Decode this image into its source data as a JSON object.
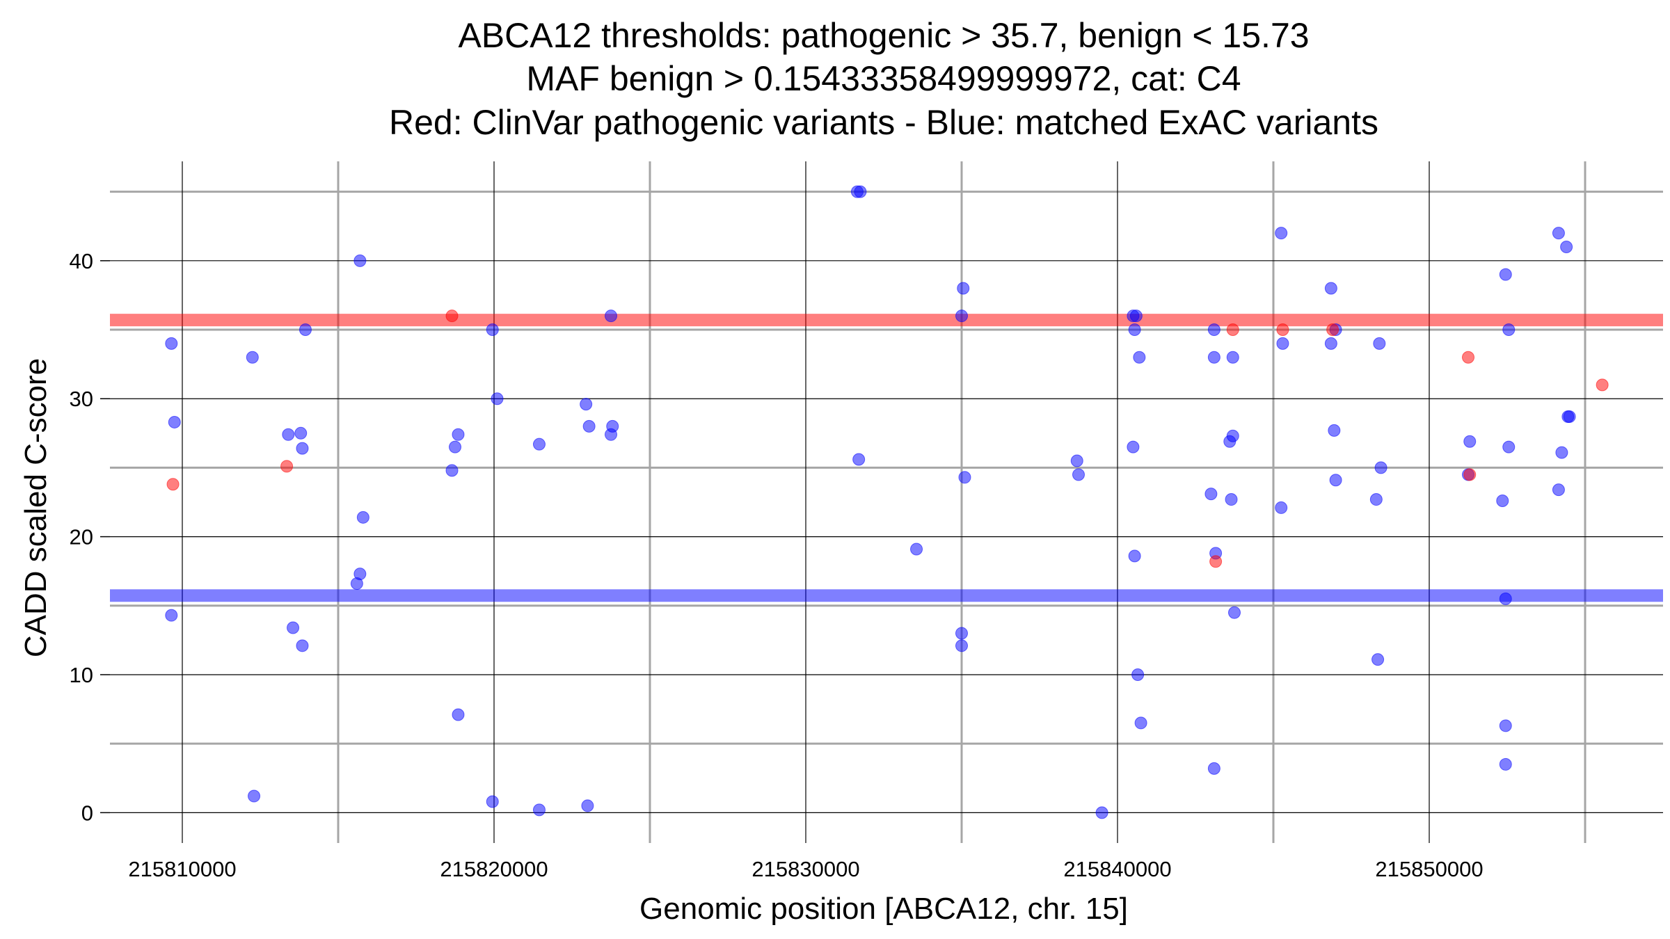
{
  "chart_data": {
    "type": "scatter",
    "title_lines": [
      "ABCA12 thresholds: pathogenic > 35.7, benign < 15.73",
      "MAF benign > 0.15433358499999972, cat: C4",
      "Red: ClinVar pathogenic variants - Blue: matched ExAC variants"
    ],
    "xlabel": "Genomic position [ABCA12, chr. 15]",
    "ylabel": "CADD scaled C-score",
    "xlim": [
      215807500,
      215857500
    ],
    "ylim": [
      -2.2,
      47.2
    ],
    "x_major_ticks": [
      215810000,
      215820000,
      215830000,
      215840000,
      215850000
    ],
    "x_tick_labels": [
      "215810000",
      "215820000",
      "215830000",
      "215840000",
      "215850000"
    ],
    "x_minor_grid": [
      215815000,
      215825000,
      215835000,
      215845000,
      215855000
    ],
    "y_major_ticks": [
      0,
      10,
      20,
      30,
      40
    ],
    "y_tick_labels": [
      "0",
      "10",
      "20",
      "30",
      "40"
    ],
    "y_minor_grid": [
      5,
      15,
      25,
      35,
      45
    ],
    "thresholds": [
      {
        "name": "pathogenic",
        "value": 35.7,
        "color": "#ff0000"
      },
      {
        "name": "benign",
        "value": 15.73,
        "color": "#0000ff"
      }
    ],
    "series": [
      {
        "name": "ClinVar pathogenic variants",
        "color": "#ff0000",
        "points": [
          [
            215809700,
            23.8
          ],
          [
            215813350,
            25.1
          ],
          [
            215818650,
            36.0
          ],
          [
            215843150,
            18.2
          ],
          [
            215843700,
            35.0
          ],
          [
            215845300,
            35.0
          ],
          [
            215846900,
            35.0
          ],
          [
            215851250,
            33.0
          ],
          [
            215851300,
            24.5
          ],
          [
            215855550,
            31.0
          ]
        ]
      },
      {
        "name": "matched ExAC variants",
        "color": "#0000ff",
        "points": [
          [
            215809650,
            34.0
          ],
          [
            215809750,
            28.3
          ],
          [
            215809650,
            14.3
          ],
          [
            215812250,
            33.0
          ],
          [
            215812300,
            1.2
          ],
          [
            215813400,
            27.4
          ],
          [
            215813550,
            13.4
          ],
          [
            215813800,
            27.5
          ],
          [
            215813850,
            26.4
          ],
          [
            215813850,
            12.1
          ],
          [
            215813950,
            35.0
          ],
          [
            215815700,
            40.0
          ],
          [
            215815800,
            21.4
          ],
          [
            215815700,
            17.3
          ],
          [
            215815600,
            16.6
          ],
          [
            215818650,
            24.8
          ],
          [
            215818750,
            26.5
          ],
          [
            215818850,
            27.4
          ],
          [
            215818850,
            7.1
          ],
          [
            215819950,
            35.0
          ],
          [
            215820100,
            30.0
          ],
          [
            215819950,
            0.8
          ],
          [
            215821450,
            26.7
          ],
          [
            215821450,
            0.2
          ],
          [
            215822950,
            29.6
          ],
          [
            215823050,
            28.0
          ],
          [
            215823000,
            0.5
          ],
          [
            215823750,
            36.0
          ],
          [
            215823800,
            28.0
          ],
          [
            215823750,
            27.4
          ],
          [
            215831650,
            45.0
          ],
          [
            215831750,
            45.0
          ],
          [
            215831700,
            25.6
          ],
          [
            215833550,
            19.1
          ],
          [
            215835050,
            38.0
          ],
          [
            215835000,
            36.0
          ],
          [
            215835100,
            24.3
          ],
          [
            215835000,
            13.0
          ],
          [
            215835000,
            12.1
          ],
          [
            215838700,
            25.5
          ],
          [
            215838750,
            24.5
          ],
          [
            215839500,
            0.0
          ],
          [
            215840500,
            36.0
          ],
          [
            215840600,
            36.0
          ],
          [
            215840550,
            35.0
          ],
          [
            215840700,
            33.0
          ],
          [
            215840500,
            26.5
          ],
          [
            215840550,
            18.6
          ],
          [
            215840650,
            10.0
          ],
          [
            215840750,
            6.5
          ],
          [
            215843100,
            35.0
          ],
          [
            215843100,
            33.0
          ],
          [
            215843000,
            23.1
          ],
          [
            215843150,
            18.8
          ],
          [
            215843100,
            3.2
          ],
          [
            215843600,
            26.9
          ],
          [
            215843700,
            27.3
          ],
          [
            215843650,
            22.7
          ],
          [
            215843700,
            33.0
          ],
          [
            215843750,
            14.5
          ],
          [
            215845250,
            42.0
          ],
          [
            215845300,
            34.0
          ],
          [
            215845250,
            22.1
          ],
          [
            215846850,
            38.0
          ],
          [
            215846850,
            34.0
          ],
          [
            215847000,
            35.0
          ],
          [
            215846950,
            27.7
          ],
          [
            215847000,
            24.1
          ],
          [
            215848400,
            34.0
          ],
          [
            215848450,
            25.0
          ],
          [
            215848300,
            22.7
          ],
          [
            215848350,
            11.1
          ],
          [
            215851300,
            26.9
          ],
          [
            215851250,
            24.5
          ],
          [
            215852450,
            39.0
          ],
          [
            215852550,
            35.0
          ],
          [
            215852550,
            26.5
          ],
          [
            215852350,
            22.6
          ],
          [
            215852450,
            15.5
          ],
          [
            215852450,
            6.3
          ],
          [
            215852450,
            3.5
          ],
          [
            215854150,
            42.0
          ],
          [
            215854400,
            41.0
          ],
          [
            215854250,
            26.1
          ],
          [
            215854150,
            23.4
          ],
          [
            215854450,
            28.7
          ],
          [
            215854500,
            28.7
          ]
        ]
      }
    ]
  }
}
